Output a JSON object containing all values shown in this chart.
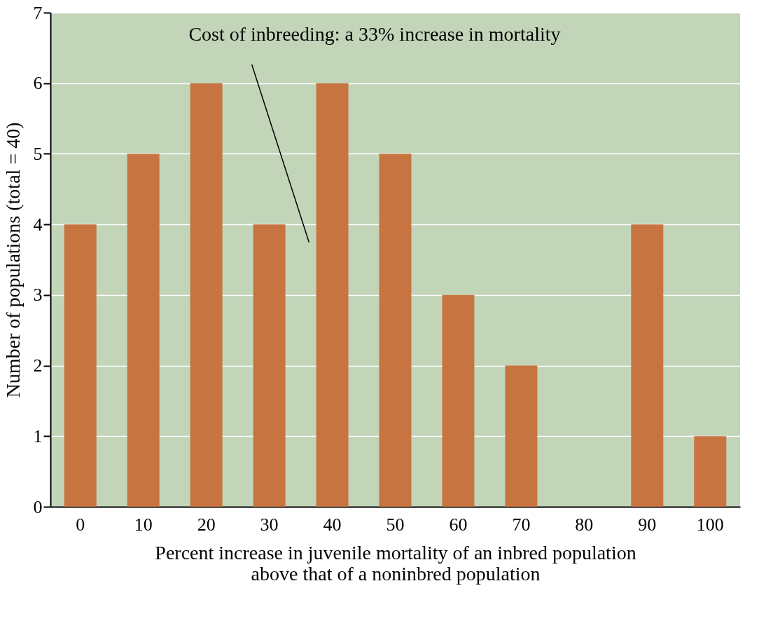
{
  "chart_data": {
    "type": "bar",
    "xlabel": "Percent increase in juvenile mortality of an inbred population\nabove that of a noninbred population",
    "ylabel": "Number of populations (total = 40)",
    "categories": [
      "0",
      "10",
      "20",
      "30",
      "40",
      "50",
      "60",
      "70",
      "80",
      "90",
      "100"
    ],
    "values": [
      4,
      5,
      6,
      4,
      6,
      5,
      3,
      2,
      0,
      4,
      1
    ],
    "color": "#c87441",
    "ylim": [
      0,
      7
    ],
    "yticks": [
      0,
      1,
      2,
      3,
      4,
      5,
      6,
      7
    ],
    "grid": "y",
    "annotations": [
      "Cost of inbreeding: a 33% increase in mortality"
    ]
  }
}
